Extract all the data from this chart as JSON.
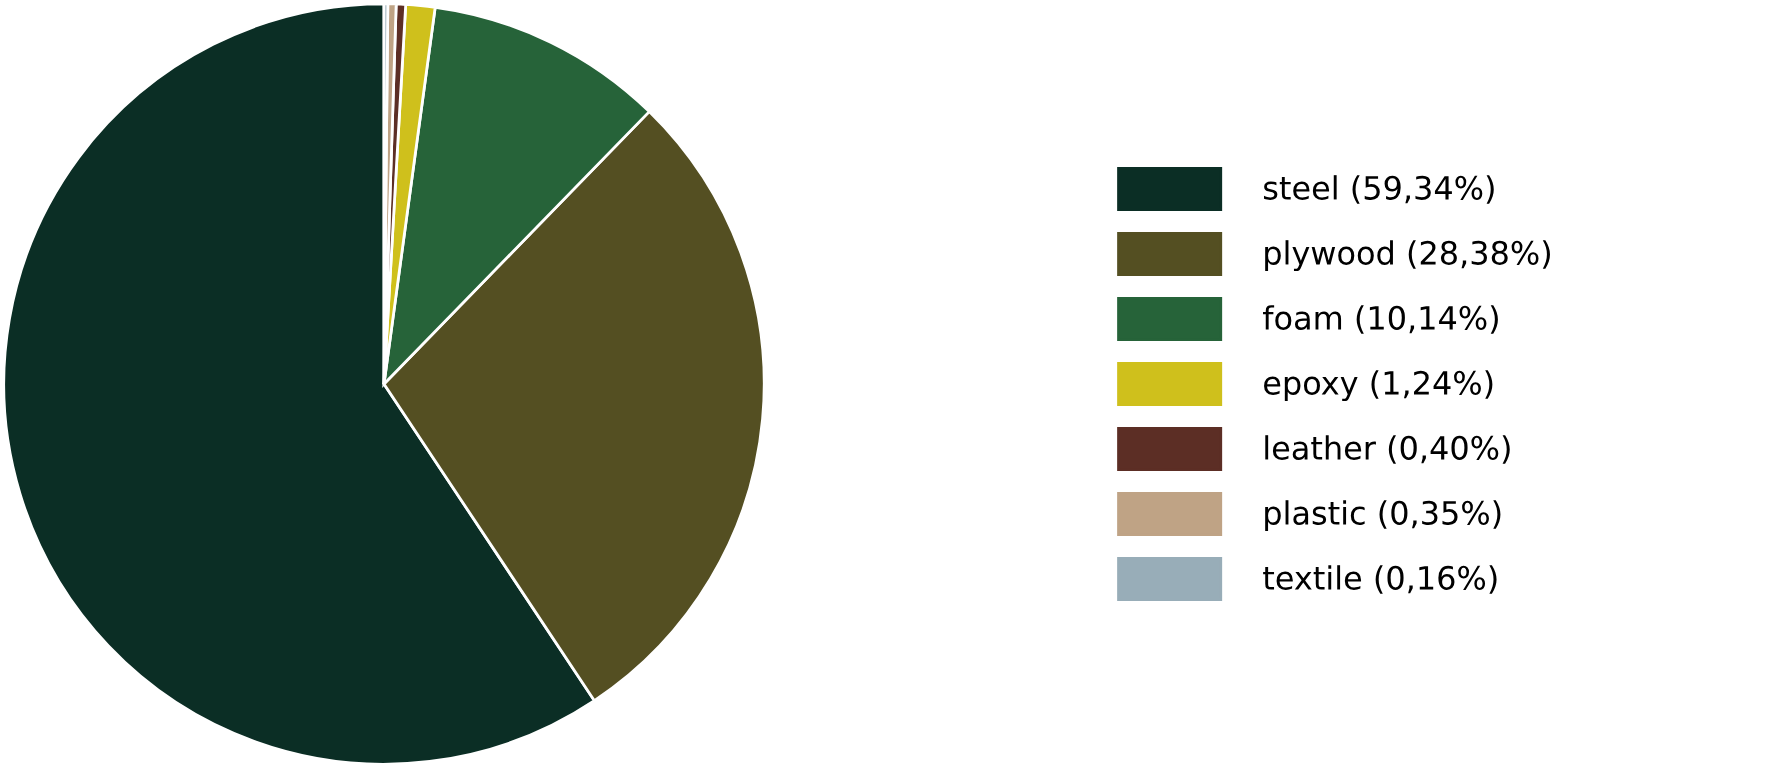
{
  "chart_data": {
    "type": "pie",
    "categories": [
      "steel (59,34%)",
      "plywood (28,38%)",
      "foam (10,14%)",
      "epoxy (1,24%)",
      "leather (0,40%)",
      "plastic (0,35%)",
      "textile (0,16%)"
    ],
    "values": [
      59.34,
      28.38,
      10.14,
      1.24,
      0.4,
      0.35,
      0.16
    ],
    "colors": [
      "#0b2e25",
      "#544f22",
      "#266339",
      "#cfc01c",
      "#5c2e25",
      "#bfa385",
      "#98adb8"
    ],
    "legend": "right"
  }
}
